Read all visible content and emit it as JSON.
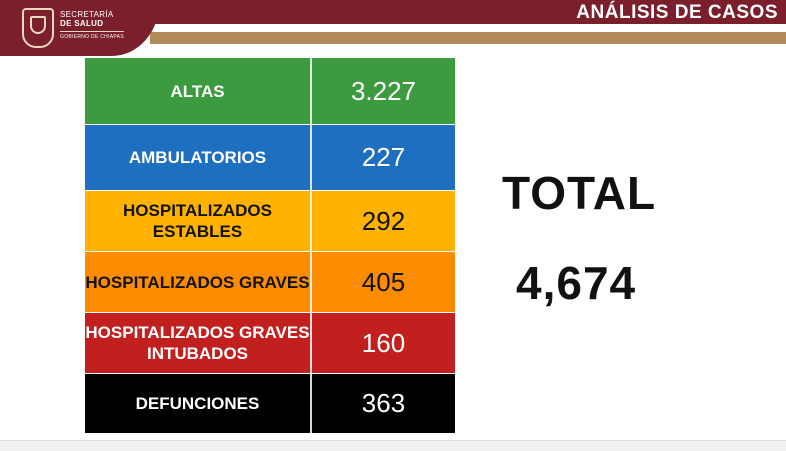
{
  "header": {
    "org_line1": "SECRETARÍA",
    "org_line2": "DE SALUD",
    "org_line3": "GOBIERNO DE CHIAPAS",
    "section_title": "ANÁLISIS DE CASOS",
    "colors": {
      "bar": "#7a1f2b",
      "gold": "#b38a5a"
    }
  },
  "table": {
    "rows": [
      {
        "label": "ALTAS",
        "value": "3.227",
        "color": "#3c9a3f",
        "text_color": "#ffffff"
      },
      {
        "label": "AMBULATORIOS",
        "value": "227",
        "color": "#1f6fc1",
        "text_color": "#ffffff"
      },
      {
        "label": "HOSPITALIZADOS ESTABLES",
        "value": "292",
        "color": "#ffb300",
        "text_color": "#111111"
      },
      {
        "label": "HOSPITALIZADOS GRAVES",
        "value": "405",
        "color": "#fb8c00",
        "text_color": "#111111"
      },
      {
        "label": "HOSPITALIZADOS GRAVES INTUBADOS",
        "value": "160",
        "color": "#c21f1f",
        "text_color": "#ffffff"
      },
      {
        "label": "DEFUNCIONES",
        "value": "363",
        "color": "#000000",
        "text_color": "#ffffff"
      }
    ]
  },
  "summary": {
    "total_label": "TOTAL",
    "total_value": "4,674"
  }
}
